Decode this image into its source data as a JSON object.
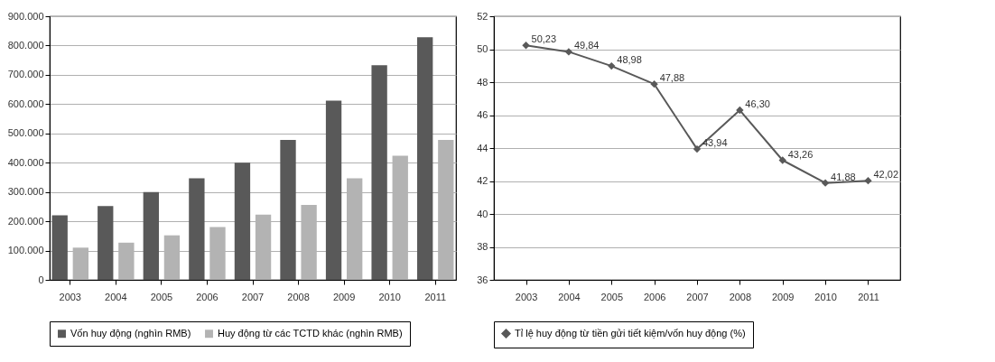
{
  "chart_data": [
    {
      "type": "bar",
      "categories": [
        "2003",
        "2004",
        "2005",
        "2006",
        "2007",
        "2008",
        "2009",
        "2010",
        "2011"
      ],
      "series": [
        {
          "name": "Vốn huy động (nghìn RMB)",
          "color": "#595959",
          "values": [
            220000,
            252000,
            300000,
            347000,
            400000,
            478000,
            612000,
            733000,
            828000
          ]
        },
        {
          "name": "Huy động từ các TCTD khác (nghìn RMB)",
          "color": "#b3b3b3",
          "values": [
            110000,
            127000,
            152000,
            180000,
            223000,
            256000,
            347000,
            424000,
            478000
          ]
        }
      ],
      "ylim": [
        0,
        900000
      ],
      "yticks": [
        0,
        {
          "value": 100000,
          "label": "100.000"
        },
        {
          "value": 200000,
          "label": "200.000"
        },
        {
          "value": 300000,
          "label": "300.000"
        },
        {
          "value": 400000,
          "label": "400.000"
        },
        {
          "value": 500000,
          "label": "500.000"
        },
        {
          "value": 600000,
          "label": "600.000"
        },
        {
          "value": 700000,
          "label": "700.000"
        },
        {
          "value": 800000,
          "label": "800.000"
        },
        {
          "value": 900000,
          "label": "900.000"
        }
      ],
      "grid": "y",
      "legend": "bottom"
    },
    {
      "type": "line",
      "categories": [
        "2003",
        "2004",
        "2005",
        "2006",
        "2007",
        "2008",
        "2009",
        "2010",
        "2011"
      ],
      "series": [
        {
          "name": "Tỉ lệ huy động từ tiền gửi tiết kiệm/vốn huy động (%)",
          "color": "#595959",
          "values": [
            50.23,
            49.84,
            48.98,
            47.88,
            43.94,
            46.3,
            43.26,
            41.88,
            42.02
          ],
          "value_labels": [
            "50,23",
            "49,84",
            "48,98",
            "47,88",
            "43,94",
            "46,30",
            "43,26",
            "41,88",
            "42,02"
          ]
        }
      ],
      "ylim": [
        36,
        52
      ],
      "yticks": [
        36,
        38,
        40,
        42,
        44,
        46,
        48,
        50,
        52
      ],
      "grid": "y",
      "legend": "bottom",
      "marker": "diamond"
    }
  ]
}
